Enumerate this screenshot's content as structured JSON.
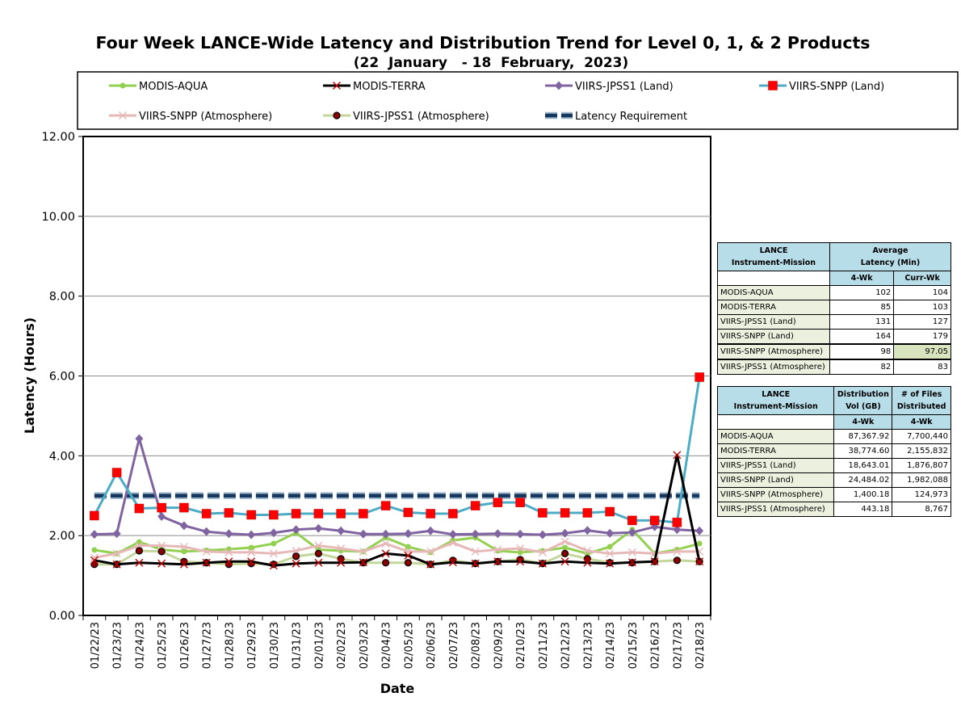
{
  "title": "Four Week LANCE-Wide Latency and Distribution Trend for Level 0, 1, & 2 Products",
  "subtitle": "(22  January   - 18  February,  2023)",
  "chart_data": {
    "type": "line",
    "xlabel": "Date",
    "ylabel": "Latency (Hours)",
    "ylim": [
      0,
      12
    ],
    "yticks": [
      "0.00",
      "2.00",
      "4.00",
      "6.00",
      "8.00",
      "10.00",
      "12.00"
    ],
    "grid": true,
    "legend_position": "top",
    "categories": [
      "01/22/23",
      "01/23/23",
      "01/24/23",
      "01/25/23",
      "01/26/23",
      "01/27/23",
      "01/28/23",
      "01/29/23",
      "01/30/23",
      "01/31/23",
      "02/01/23",
      "02/02/23",
      "02/03/23",
      "02/04/23",
      "02/05/23",
      "02/06/23",
      "02/07/23",
      "02/08/23",
      "02/09/23",
      "02/10/23",
      "02/11/23",
      "02/12/23",
      "02/13/23",
      "02/14/23",
      "02/15/23",
      "02/16/23",
      "02/17/23",
      "02/18/23"
    ],
    "series": [
      {
        "name": "MODIS-AQUA",
        "color": "#92d050",
        "marker": "circle",
        "values": [
          1.64,
          1.55,
          1.84,
          1.65,
          1.6,
          1.63,
          1.66,
          1.7,
          1.8,
          2.07,
          1.65,
          1.62,
          1.6,
          1.95,
          1.72,
          1.58,
          1.88,
          1.95,
          1.62,
          1.58,
          1.62,
          1.7,
          1.55,
          1.72,
          2.15,
          1.55,
          1.65,
          1.8
        ]
      },
      {
        "name": "MODIS-TERRA",
        "color": "#000000",
        "marker": "x",
        "values": [
          1.38,
          1.28,
          1.32,
          1.3,
          1.28,
          1.32,
          1.35,
          1.35,
          1.25,
          1.3,
          1.32,
          1.32,
          1.33,
          1.55,
          1.5,
          1.28,
          1.33,
          1.3,
          1.35,
          1.35,
          1.3,
          1.35,
          1.32,
          1.3,
          1.33,
          1.35,
          4.02,
          1.35
        ]
      },
      {
        "name": "VIIRS-JPSS1 (Land)",
        "color": "#8064a2",
        "marker": "diamond",
        "values": [
          2.03,
          2.05,
          4.43,
          2.48,
          2.25,
          2.1,
          2.05,
          2.02,
          2.07,
          2.15,
          2.18,
          2.12,
          2.04,
          2.04,
          2.05,
          2.12,
          2.03,
          2.04,
          2.05,
          2.04,
          2.02,
          2.06,
          2.13,
          2.06,
          2.08,
          2.22,
          2.15,
          2.12
        ]
      },
      {
        "name": "VIIRS-SNPP (Land)",
        "color": "#4bacc6",
        "marker": "square",
        "values": [
          2.5,
          3.58,
          2.68,
          2.7,
          2.7,
          2.55,
          2.57,
          2.52,
          2.52,
          2.55,
          2.55,
          2.55,
          2.55,
          2.75,
          2.58,
          2.55,
          2.55,
          2.75,
          2.83,
          2.83,
          2.57,
          2.57,
          2.57,
          2.6,
          2.38,
          2.38,
          2.33,
          5.97
        ]
      },
      {
        "name": "VIIRS-SNPP (Atmosphere)",
        "color": "#e6b9b8",
        "marker": "x",
        "values": [
          1.45,
          1.55,
          1.75,
          1.75,
          1.72,
          1.6,
          1.58,
          1.58,
          1.55,
          1.62,
          1.75,
          1.68,
          1.6,
          1.8,
          1.6,
          1.6,
          1.82,
          1.6,
          1.65,
          1.68,
          1.58,
          1.85,
          1.62,
          1.55,
          1.58,
          1.55,
          1.6,
          1.6
        ]
      },
      {
        "name": "VIIRS-JPSS1 (Atmosphere)",
        "color": "#c4d79b",
        "marker": "dot",
        "values": [
          1.28,
          1.28,
          1.62,
          1.6,
          1.35,
          1.32,
          1.28,
          1.3,
          1.28,
          1.48,
          1.55,
          1.42,
          1.32,
          1.32,
          1.32,
          1.28,
          1.38,
          1.3,
          1.35,
          1.4,
          1.3,
          1.55,
          1.42,
          1.32,
          1.32,
          1.35,
          1.38,
          1.35
        ]
      },
      {
        "name": "Latency Requirement",
        "color": "#17375e",
        "marker": "none",
        "dashed": true,
        "values": [
          3,
          3,
          3,
          3,
          3,
          3,
          3,
          3,
          3,
          3,
          3,
          3,
          3,
          3,
          3,
          3,
          3,
          3,
          3,
          3,
          3,
          3,
          3,
          3,
          3,
          3,
          3,
          3
        ]
      }
    ]
  },
  "latency_table": {
    "header_left": [
      "LANCE",
      "Instrument-Mission"
    ],
    "header_right": [
      "Average",
      "Latency (Min)"
    ],
    "col_4wk": "4-Wk",
    "col_curr": "Curr-Wk",
    "rows": [
      {
        "label": "MODIS-AQUA",
        "wk4": "102",
        "curr": "104"
      },
      {
        "label": "MODIS-TERRA",
        "wk4": "85",
        "curr": "103"
      },
      {
        "label": "VIIRS-JPSS1 (Land)",
        "wk4": "131",
        "curr": "127"
      },
      {
        "label": "VIIRS-SNPP (Land)",
        "wk4": "164",
        "curr": "179"
      },
      {
        "label": "VIIRS-SNPP (Atmosphere)",
        "wk4": "98",
        "curr": "97.05"
      },
      {
        "label": "VIIRS-JPSS1 (Atmosphere)",
        "wk4": "82",
        "curr": "83"
      }
    ]
  },
  "distribution_table": {
    "header_left": [
      "LANCE",
      "Instrument-Mission"
    ],
    "header_vol": [
      "Distribution",
      "Vol (GB)"
    ],
    "header_files": [
      "# of Files",
      "Distributed"
    ],
    "col_vol": "4-Wk",
    "col_files": "4-Wk",
    "rows": [
      {
        "label": "MODIS-AQUA",
        "vol": "87,367.92",
        "files": "7,700,440"
      },
      {
        "label": "MODIS-TERRA",
        "vol": "38,774.60",
        "files": "2,155,832"
      },
      {
        "label": "VIIRS-JPSS1 (Land)",
        "vol": "18,643.01",
        "files": "1,876,807"
      },
      {
        "label": "VIIRS-SNPP (Land)",
        "vol": "24,484.02",
        "files": "1,982,088"
      },
      {
        "label": "VIIRS-SNPP (Atmosphere)",
        "vol": "1,400.18",
        "files": "124,973"
      },
      {
        "label": "VIIRS-JPSS1 (Atmosphere)",
        "vol": "443.18",
        "files": "8,767"
      }
    ]
  }
}
